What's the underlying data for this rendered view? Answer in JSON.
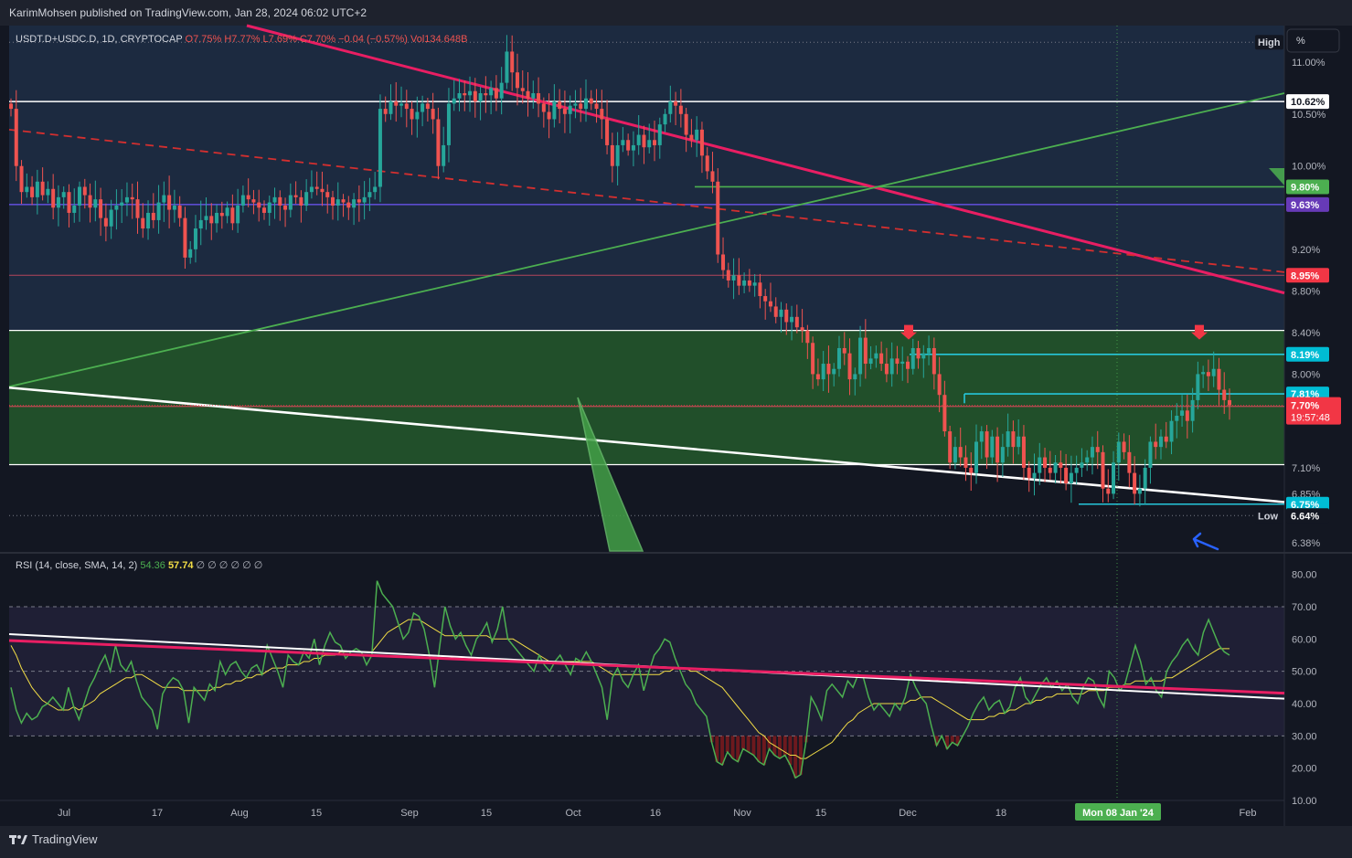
{
  "header": {
    "publisher": "KarimMohsen published on TradingView.com, Jan 28, 2024 06:02 UTC+2"
  },
  "footer": {
    "brand": "TradingView"
  },
  "chart_data": [
    {
      "type": "candlestick",
      "title": "USDT.D+USDC.D, 1D, CRYPTOCAP",
      "ohlc": {
        "o": "O7.75%",
        "h": "H7.77%",
        "l": "L7.69%",
        "c": "C7.70%",
        "chg": "−0.04 (−0.57%)",
        "vol": "Vol134.648B"
      },
      "unit_button": "%",
      "y_ticks": [
        "11.00%",
        "10.50%",
        "10.00%",
        "9.20%",
        "8.80%",
        "8.40%",
        "8.00%",
        "7.10%",
        "6.85%",
        "6.38%"
      ],
      "ylim": [
        6.3,
        11.35
      ],
      "x_ticks": [
        "Jul",
        "17",
        "Aug",
        "15",
        "Sep",
        "15",
        "Oct",
        "16",
        "Nov",
        "15",
        "Dec",
        "18",
        "Feb"
      ],
      "crosshair_label": "Mon 08 Jan '24",
      "high_label": {
        "tag": "High",
        "value": "11.19%",
        "y": 11.19
      },
      "low_label": {
        "tag": "Low",
        "value": "6.64%",
        "y": 6.64
      },
      "price_labels": [
        {
          "text": "10.62%",
          "y": 10.62,
          "bg": "#ffffff",
          "fg": "#131722"
        },
        {
          "text": "9.80%",
          "y": 9.8,
          "bg": "#4caf50",
          "fg": "#ffffff"
        },
        {
          "text": "9.63%",
          "y": 9.63,
          "bg": "#673ab7",
          "fg": "#ffffff"
        },
        {
          "text": "8.95%",
          "y": 8.95,
          "bg": "#f23645",
          "fg": "#ffffff"
        },
        {
          "text": "8.19%",
          "y": 8.19,
          "bg": "#00bcd4",
          "fg": "#ffffff"
        },
        {
          "text": "7.81%",
          "y": 7.81,
          "bg": "#00bcd4",
          "fg": "#ffffff"
        },
        {
          "text": "7.69%",
          "y": 7.69,
          "bg": "#f23645",
          "fg": "#ffffff"
        },
        {
          "text": "6.75%",
          "y": 6.75,
          "bg": "#00bcd4",
          "fg": "#ffffff"
        }
      ],
      "current_price": {
        "value": "7.70%",
        "countdown": "19:57:48",
        "y": 7.7
      },
      "closes": [
        10.55,
        10.0,
        9.75,
        9.8,
        9.7,
        9.85,
        9.72,
        9.78,
        9.6,
        9.7,
        9.75,
        9.55,
        9.62,
        9.8,
        9.72,
        9.6,
        9.68,
        9.5,
        9.42,
        9.58,
        9.62,
        9.65,
        9.7,
        9.68,
        9.5,
        9.4,
        9.55,
        9.48,
        9.65,
        9.72,
        9.58,
        9.62,
        9.5,
        9.12,
        9.2,
        9.4,
        9.48,
        9.52,
        9.45,
        9.55,
        9.52,
        9.6,
        9.45,
        9.62,
        9.72,
        9.68,
        9.65,
        9.6,
        9.55,
        9.65,
        9.7,
        9.62,
        9.58,
        9.72,
        9.7,
        9.62,
        9.75,
        9.8,
        9.78,
        9.75,
        9.7,
        9.62,
        9.68,
        9.65,
        9.6,
        9.68,
        9.65,
        9.7,
        9.75,
        9.8,
        10.55,
        10.5,
        10.62,
        10.58,
        10.6,
        10.55,
        10.45,
        10.52,
        10.6,
        10.55,
        10.45,
        10.0,
        10.2,
        10.6,
        10.65,
        10.7,
        10.68,
        10.72,
        10.62,
        10.7,
        10.68,
        10.75,
        10.65,
        10.8,
        11.1,
        10.9,
        10.75,
        10.72,
        10.65,
        10.7,
        10.6,
        10.52,
        10.45,
        10.62,
        10.55,
        10.5,
        10.58,
        10.6,
        10.55,
        10.65,
        10.6,
        10.55,
        10.45,
        10.2,
        10.0,
        10.2,
        10.25,
        10.15,
        10.2,
        10.3,
        10.18,
        10.25,
        10.2,
        10.4,
        10.5,
        10.62,
        10.58,
        10.5,
        10.3,
        10.25,
        10.35,
        10.1,
        9.95,
        9.85,
        9.15,
        9.0,
        8.9,
        8.95,
        8.85,
        8.9,
        8.85,
        8.88,
        8.75,
        8.7,
        8.65,
        8.55,
        8.62,
        8.5,
        8.55,
        8.45,
        8.42,
        8.3,
        8.0,
        7.95,
        8.1,
        8.0,
        8.05,
        8.25,
        8.2,
        7.95,
        8.0,
        8.35,
        8.1,
        8.15,
        8.2,
        8.1,
        8.0,
        8.15,
        8.1,
        8.12,
        8.05,
        8.25,
        8.15,
        8.2,
        8.25,
        8.0,
        7.8,
        7.45,
        7.15,
        7.3,
        7.2,
        7.1,
        7.05,
        7.35,
        7.45,
        7.2,
        7.4,
        7.15,
        7.3,
        7.45,
        7.3,
        7.4,
        7.1,
        7.0,
        7.05,
        7.2,
        7.1,
        7.05,
        7.15,
        7.1,
        6.95,
        7.05,
        7.1,
        7.15,
        7.2,
        7.3,
        7.25,
        6.9,
        6.85,
        7.15,
        7.35,
        7.25,
        7.05,
        6.85,
        6.9,
        7.1,
        7.35,
        7.3,
        7.4,
        7.35,
        7.55,
        7.6,
        7.65,
        7.55,
        7.75,
        8.0,
        8.02,
        7.98,
        8.05,
        7.85,
        7.75,
        7.7
      ],
      "series": [
        {
          "name": "RSI",
          "values": [
            45,
            38,
            34,
            37,
            35,
            36,
            39,
            40,
            42,
            40,
            38,
            45,
            39,
            35,
            40,
            45,
            48,
            52,
            55,
            50,
            58,
            52,
            50,
            53,
            47,
            42,
            40,
            38,
            32,
            43,
            46,
            48,
            47,
            44,
            34,
            45,
            43,
            41,
            46,
            44,
            53,
            49,
            52,
            53,
            50,
            48,
            51,
            52,
            49,
            58,
            54,
            50,
            45,
            55,
            53,
            52,
            56,
            54,
            60,
            52,
            58,
            62,
            59,
            58,
            54,
            56,
            57,
            56,
            52,
            55,
            78,
            74,
            72,
            70,
            65,
            60,
            62,
            68,
            67,
            63,
            55,
            45,
            58,
            70,
            64,
            60,
            62,
            58,
            55,
            60,
            62,
            65,
            59,
            63,
            70,
            60,
            58,
            56,
            54,
            52,
            50,
            55,
            52,
            50,
            53,
            55,
            52,
            49,
            54,
            53,
            56,
            53,
            49,
            45,
            35,
            48,
            51,
            47,
            45,
            49,
            52,
            44,
            50,
            55,
            57,
            60,
            59,
            54,
            50,
            46,
            44,
            40,
            38,
            36,
            28,
            22,
            21,
            25,
            23,
            22,
            26,
            25,
            24,
            22,
            21,
            26,
            24,
            23,
            24,
            21,
            17,
            18,
            28,
            42,
            39,
            35,
            44,
            46,
            44,
            42,
            47,
            45,
            49,
            48,
            42,
            38,
            40,
            38,
            36,
            40,
            38,
            42,
            49,
            45,
            42,
            40,
            33,
            27,
            30,
            26,
            28,
            27,
            30,
            33,
            37,
            40,
            42,
            38,
            40,
            41,
            37,
            39,
            45,
            48,
            42,
            40,
            43,
            46,
            48,
            45,
            47,
            44,
            46,
            42,
            40,
            45,
            48,
            47,
            42,
            39,
            50,
            48,
            44,
            46,
            52,
            58,
            53,
            46,
            48,
            44,
            42,
            50,
            53,
            55,
            58,
            60,
            57,
            55,
            62,
            66,
            62,
            58,
            56,
            55
          ]
        },
        {
          "name": "RSI-based MA",
          "values": [
            58,
            55,
            51,
            48,
            45,
            43,
            41,
            40,
            39,
            38,
            38,
            38,
            39,
            38,
            39,
            40,
            41,
            43,
            44,
            45,
            46,
            47,
            48,
            48,
            49,
            49,
            48,
            47,
            46,
            45,
            45,
            45,
            45,
            44,
            44,
            44,
            44,
            44,
            44,
            45,
            45,
            46,
            46,
            47,
            47,
            48,
            48,
            49,
            49,
            50,
            51,
            51,
            51,
            52,
            52,
            52,
            53,
            53,
            54,
            54,
            55,
            55,
            55,
            56,
            56,
            56,
            56,
            56,
            56,
            56,
            58,
            60,
            62,
            63,
            64,
            65,
            66,
            66,
            66,
            65,
            64,
            63,
            62,
            61,
            61,
            61,
            61,
            61,
            61,
            61,
            61,
            61,
            60,
            60,
            60,
            60,
            60,
            59,
            58,
            57,
            56,
            55,
            54,
            53,
            53,
            53,
            53,
            53,
            53,
            53,
            53,
            53,
            52,
            51,
            50,
            49,
            49,
            49,
            49,
            49,
            49,
            49,
            49,
            49,
            49,
            50,
            50,
            51,
            51,
            51,
            50,
            50,
            49,
            48,
            47,
            46,
            45,
            43,
            41,
            39,
            37,
            35,
            33,
            31,
            30,
            28,
            27,
            26,
            25,
            24,
            24,
            23,
            23,
            24,
            25,
            26,
            27,
            28,
            30,
            32,
            34,
            35,
            37,
            38,
            39,
            40,
            40,
            40,
            40,
            40,
            40,
            40,
            41,
            41,
            42,
            42,
            42,
            41,
            40,
            39,
            38,
            37,
            36,
            35,
            35,
            35,
            35,
            36,
            36,
            37,
            37,
            38,
            38,
            39,
            40,
            40,
            41,
            41,
            42,
            42,
            43,
            43,
            43,
            43,
            43,
            43,
            44,
            44,
            44,
            44,
            45,
            45,
            45,
            46,
            46,
            47,
            47,
            47,
            47,
            47,
            47,
            48,
            48,
            49,
            50,
            51,
            52,
            53,
            54,
            55,
            56,
            57,
            57,
            57
          ]
        }
      ]
    },
    {
      "type": "line",
      "title": "RSI (14, close, SMA, 14, 2)",
      "rsi_value": "54.36",
      "ma_value": "57.74",
      "placeholders": "∅ ∅ ∅ ∅ ∅ ∅",
      "y_ticks": [
        "80.00",
        "70.00",
        "60.00",
        "50.00",
        "40.00",
        "30.00",
        "20.00",
        "10.00"
      ],
      "ylim": [
        10,
        83
      ],
      "bands": {
        "upper": 70,
        "middle": 50,
        "lower": 30
      }
    }
  ],
  "colors": {
    "bull": "#26a69a",
    "bear": "#ef5350",
    "rsi": "#4caf50",
    "rsi_ma": "#f2dd46",
    "trend_pink": "#e91e63",
    "trend_green": "#4caf50",
    "zone_green": "#2e7d32",
    "marker_arrow": "#f23645",
    "note_arrow": "#2962ff"
  }
}
